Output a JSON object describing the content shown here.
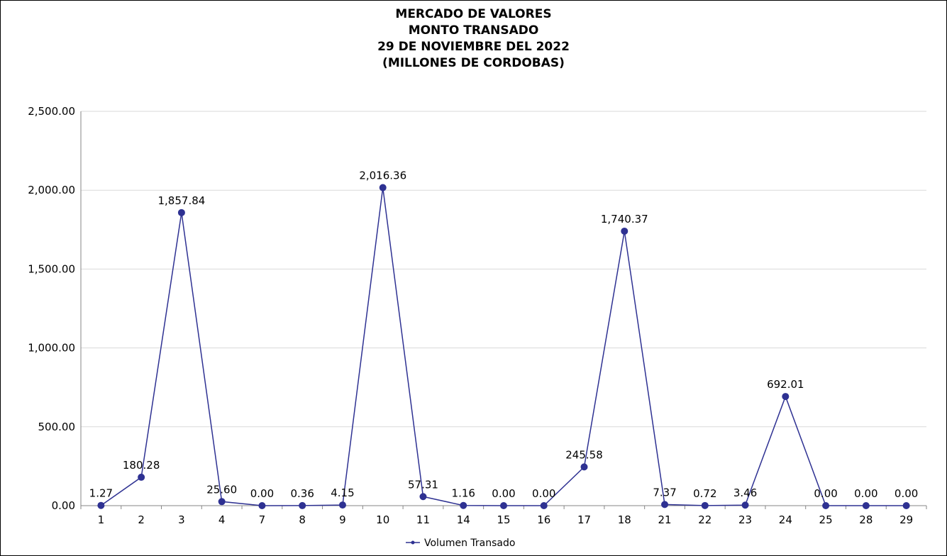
{
  "chart_data": {
    "type": "line",
    "title_lines": [
      "MERCADO DE VALORES",
      "MONTO TRANSADO",
      "29 DE NOVIEMBRE DEL 2022",
      "(MILLONES DE CORDOBAS)"
    ],
    "categories": [
      "1",
      "2",
      "3",
      "4",
      "7",
      "8",
      "9",
      "10",
      "11",
      "14",
      "15",
      "16",
      "17",
      "18",
      "21",
      "22",
      "23",
      "24",
      "25",
      "28",
      "29"
    ],
    "series": [
      {
        "name": "Volumen Transado",
        "color": "#2E3192",
        "values": [
          1.27,
          180.28,
          1857.84,
          25.6,
          0.0,
          0.36,
          4.15,
          2016.36,
          57.31,
          1.16,
          0.0,
          0.0,
          245.58,
          1740.37,
          7.37,
          0.72,
          3.46,
          692.01,
          0.0,
          0.0,
          0.0
        ],
        "labels": [
          "1.27",
          "180.28",
          "1,857.84",
          "25.60",
          "0.00",
          "0.36",
          "4.15",
          "2,016.36",
          "57.31",
          "1.16",
          "0.00",
          "0.00",
          "245.58",
          "1,740.37",
          "7.37",
          "0.72",
          "3.46",
          "692.01",
          "0.00",
          "0.00",
          "0.00"
        ]
      }
    ],
    "ylim": [
      0,
      2500
    ],
    "yticks": [
      0,
      500,
      1000,
      1500,
      2000,
      2500
    ],
    "ytick_labels": [
      "0.00",
      "500.00",
      "1,000.00",
      "1,500.00",
      "2,000.00",
      "2,500.00"
    ],
    "grid": true,
    "legend_position": "bottom-center",
    "grid_color": "#D9D9D9",
    "axis_color": "#868686"
  }
}
